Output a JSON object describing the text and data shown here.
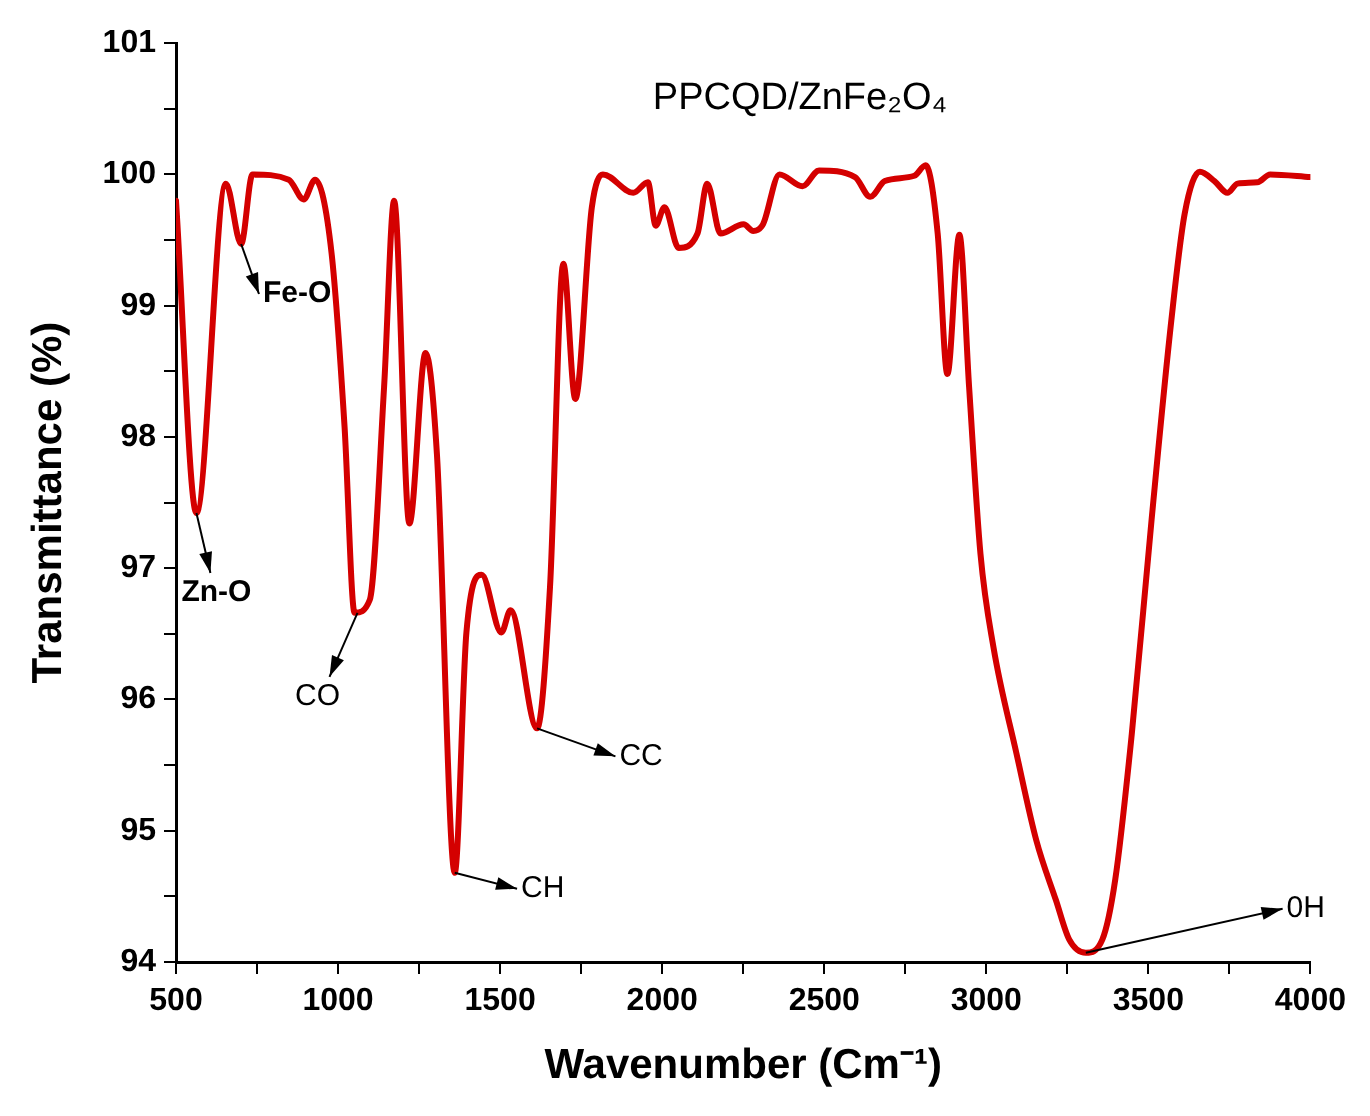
{
  "chart_data": {
    "type": "line",
    "title": "PPCQD/ZnFe₂O₄",
    "xlabel": "Wavenumber (Cm⁻¹)",
    "ylabel": "Transmittance (%)",
    "x": [
      500,
      563,
      654,
      701,
      736,
      848,
      894,
      929,
      980,
      1020,
      1051,
      1098,
      1142,
      1173,
      1220,
      1270,
      1305,
      1360,
      1396,
      1443,
      1504,
      1532,
      1614,
      1654,
      1695,
      1732,
      1783,
      1817,
      1911,
      1956,
      1980,
      2007,
      2051,
      2109,
      2139,
      2180,
      2251,
      2281,
      2311,
      2362,
      2433,
      2484,
      2595,
      2642,
      2687,
      2778,
      2813,
      2850,
      2880,
      2917,
      2947,
      2982,
      3022,
      3093,
      3154,
      3215,
      3256,
      3307,
      3358,
      3398,
      3449,
      3510,
      3571,
      3612,
      3659,
      3704,
      3744,
      3775,
      3836,
      3876,
      4000
    ],
    "series": [
      {
        "color": "#d40000",
        "values": [
          99.8,
          97.42,
          99.93,
          99.47,
          100.0,
          99.96,
          99.81,
          99.96,
          99.4,
          98.08,
          96.66,
          96.76,
          98.38,
          99.8,
          97.34,
          98.64,
          97.87,
          94.68,
          96.51,
          96.95,
          96.51,
          96.68,
          95.78,
          96.86,
          99.32,
          98.29,
          99.75,
          100.0,
          99.86,
          99.94,
          99.61,
          99.75,
          99.44,
          99.55,
          99.93,
          99.55,
          99.62,
          99.57,
          99.62,
          100.0,
          99.91,
          100.03,
          99.98,
          99.83,
          99.95,
          99.99,
          100.07,
          99.55,
          98.48,
          99.54,
          98.38,
          97.11,
          96.4,
          95.59,
          94.93,
          94.47,
          94.17,
          94.07,
          94.17,
          94.63,
          95.74,
          97.37,
          98.89,
          99.7,
          100.02,
          99.95,
          99.86,
          99.93,
          99.94,
          100.0,
          99.98
        ]
      }
    ],
    "xlim": [
      500,
      4000
    ],
    "xticks": [
      500,
      {
        "value": 750,
        "label": null
      },
      1000,
      {
        "value": 1250,
        "label": null
      },
      1500,
      {
        "value": 1750,
        "label": null
      },
      2000,
      {
        "value": 2250,
        "label": null
      },
      2500,
      {
        "value": 2750,
        "label": null
      },
      3000,
      {
        "value": 3250,
        "label": null
      },
      3500,
      {
        "value": 3750,
        "label": null
      },
      4000
    ],
    "ylim": [
      94,
      101
    ],
    "yticks": [
      94,
      {
        "value": 94.5,
        "label": null
      },
      95,
      {
        "value": 95.5,
        "label": null
      },
      96,
      {
        "value": 96.5,
        "label": null
      },
      97,
      {
        "value": 97.5,
        "label": null
      },
      98,
      {
        "value": 98.5,
        "label": null
      },
      99,
      {
        "value": 99.5,
        "label": null
      },
      100,
      {
        "value": 100.5,
        "label": null
      },
      101
    ],
    "legend": false,
    "marker": "none",
    "line_style": "solid",
    "annotations": [
      {
        "text": "Zn-O",
        "x": 563,
        "y": 97.42
      },
      {
        "text": "Fe-O",
        "x": 701,
        "y": 99.47
      },
      {
        "text": "CO",
        "x": 1060,
        "y": 96.66
      },
      {
        "text": "CH",
        "x": 1360,
        "y": 94.68
      },
      {
        "text": "CC",
        "x": 1614,
        "y": 95.78
      },
      {
        "text": "0H",
        "x": 3307,
        "y": 94.07
      }
    ]
  }
}
